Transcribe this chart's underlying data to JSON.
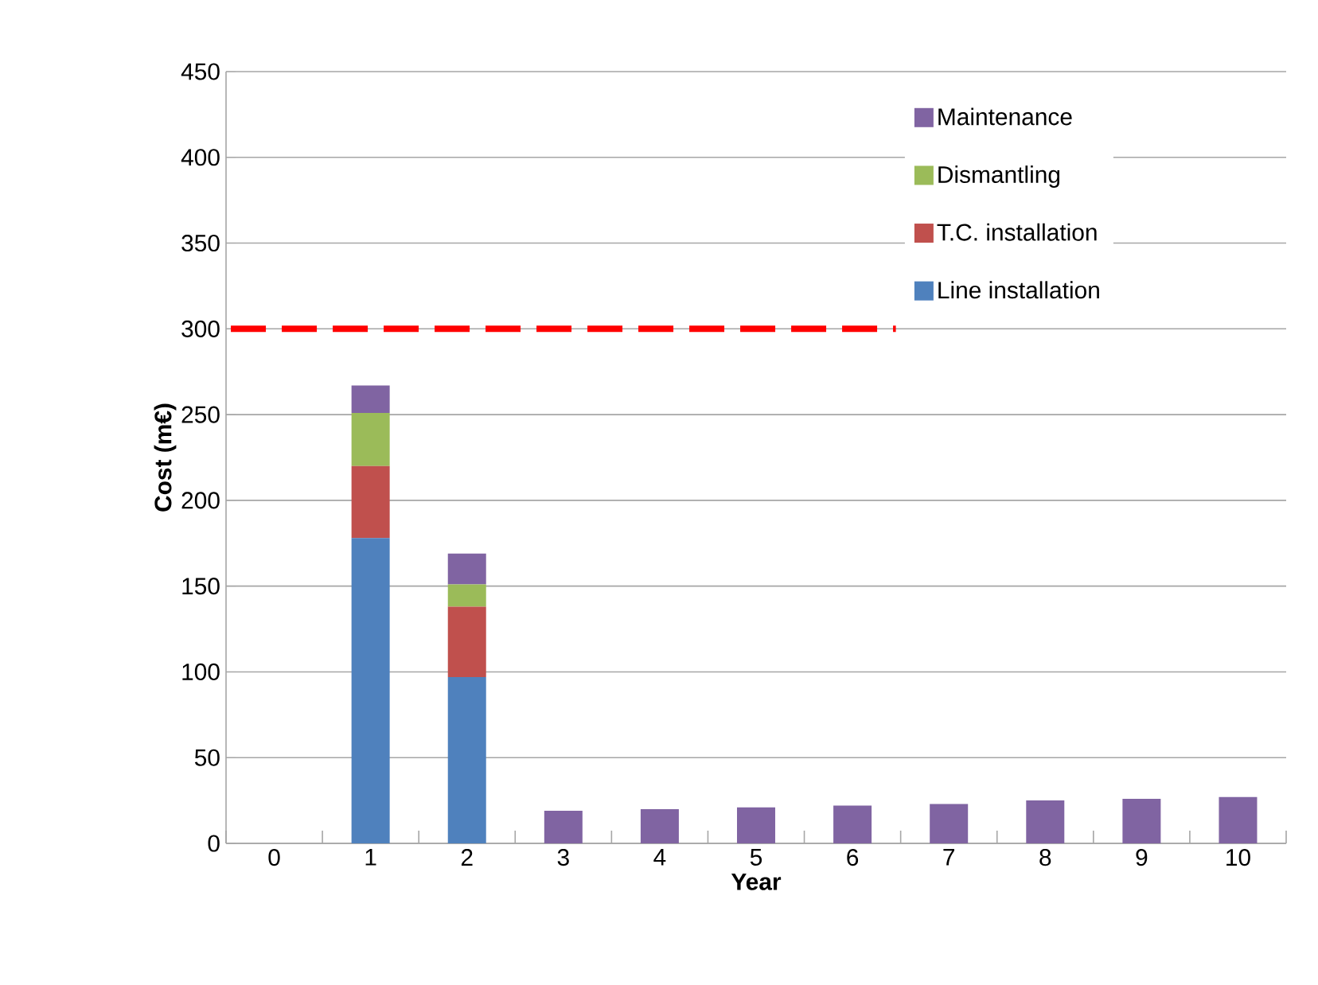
{
  "chart_data": {
    "type": "bar",
    "stacked": true,
    "xlabel": "Year",
    "ylabel": "Cost (m€)",
    "categories": [
      "0",
      "1",
      "2",
      "3",
      "4",
      "5",
      "6",
      "7",
      "8",
      "9",
      "10"
    ],
    "series": [
      {
        "name": "Line installation",
        "color": "#4f81bd",
        "values": [
          null,
          178,
          97,
          null,
          null,
          null,
          null,
          null,
          null,
          null,
          null
        ]
      },
      {
        "name": "T.C. installation",
        "color": "#c0504d",
        "values": [
          null,
          42,
          41,
          null,
          null,
          null,
          null,
          null,
          null,
          null,
          null
        ]
      },
      {
        "name": "Dismantling",
        "color": "#9bbb59",
        "values": [
          null,
          31,
          13,
          null,
          null,
          null,
          null,
          null,
          null,
          null,
          null
        ]
      },
      {
        "name": "Maintenance",
        "color": "#8064a2",
        "values": [
          null,
          16,
          18,
          19,
          20,
          21,
          22,
          23,
          25,
          26,
          27
        ]
      }
    ],
    "ylim": [
      0,
      450
    ],
    "yticks": [
      0,
      50,
      100,
      150,
      200,
      250,
      300,
      350,
      400,
      450
    ],
    "grid": "y",
    "legend": "top right",
    "ref_lines": [
      {
        "axis": "y",
        "value": 300,
        "color": "#ff0000",
        "line_style": "dashed"
      }
    ]
  }
}
